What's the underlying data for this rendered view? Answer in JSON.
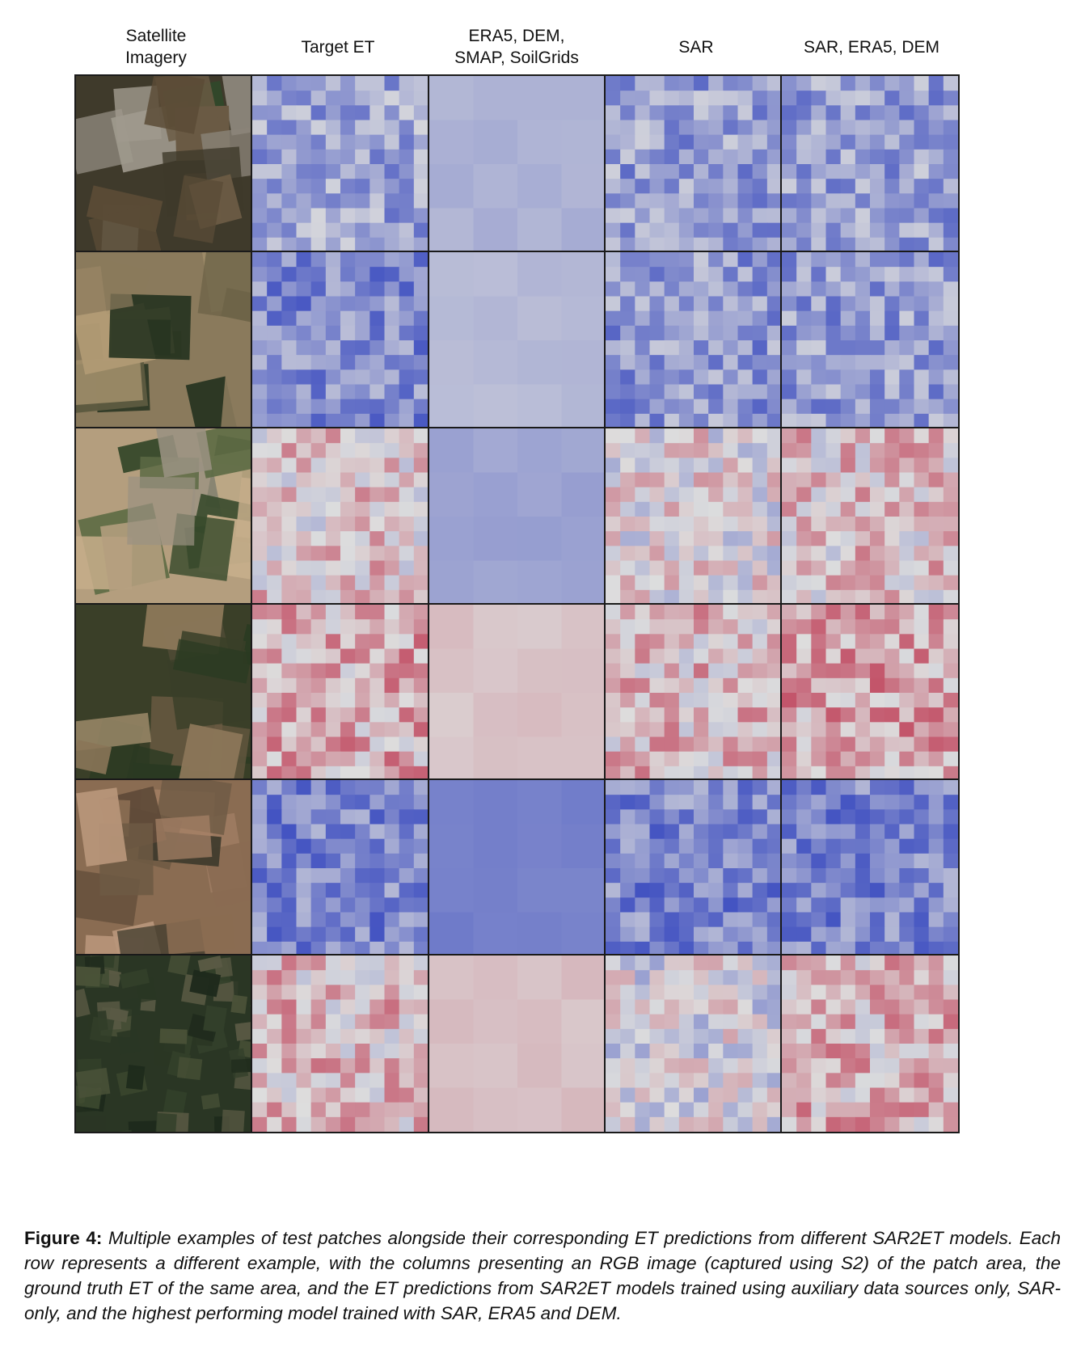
{
  "column_headers": [
    "Satellite\nImagery",
    "Target ET",
    "ERA5, DEM,\nSMAP, SoilGrids",
    "SAR",
    "SAR, ERA5, DEM"
  ],
  "caption": {
    "label": "Figure 4:",
    "text": "Multiple examples of test patches alongside their corresponding ET predictions from different SAR2ET models. Each row represents a different example, with the columns presenting an RGB image (captured using S2) of the patch area, the ground truth ET of the same area, and the ET predictions from SAR2ET models trained using auxiliary data sources only, SAR-only, and the highest performing model trained with SAR, ERA5 and DEM."
  },
  "colormap": {
    "low": "#3b4cc0",
    "mid": "#dddddd",
    "high": "#b40426"
  },
  "rows": [
    {
      "satellite_palette": [
        "#3f3a2b",
        "#6a5a44",
        "#8a8478",
        "#2f4a2a",
        "#a09a8e",
        "#5a4b36"
      ],
      "heatmap_levels": {
        "target": 0.3,
        "aux": 0.35,
        "sar": 0.28,
        "sar_era5_dem": 0.28
      }
    },
    {
      "satellite_palette": [
        "#8a7a5c",
        "#a3906c",
        "#6e6448",
        "#1f2e1c",
        "#b09a74",
        "#5c5a40"
      ],
      "heatmap_levels": {
        "target": 0.22,
        "aux": 0.38,
        "sar": 0.26,
        "sar_era5_dem": 0.27
      }
    },
    {
      "satellite_palette": [
        "#b49e7e",
        "#2e3e26",
        "#9a9282",
        "#5c6a44",
        "#c6ae8a",
        "#384a2c"
      ],
      "heatmap_levels": {
        "target": 0.55,
        "aux": 0.3,
        "sar": 0.5,
        "sar_era5_dem": 0.56
      }
    },
    {
      "satellite_palette": [
        "#3a3f28",
        "#6a5a42",
        "#2a3a22",
        "#8a7658",
        "#4e4a34",
        "#a08c6c"
      ],
      "heatmap_levels": {
        "target": 0.62,
        "aux": 0.56,
        "sar": 0.58,
        "sar_era5_dem": 0.64
      }
    },
    {
      "satellite_palette": [
        "#8a6c52",
        "#5e4a38",
        "#a48066",
        "#3e3a2c",
        "#b8967a",
        "#6e5a44"
      ],
      "heatmap_levels": {
        "target": 0.2,
        "aux": 0.18,
        "sar": 0.2,
        "sar_era5_dem": 0.2
      }
    },
    {
      "satellite_palette": [
        "#2a3624",
        "#3e4a30",
        "#1e2a1c",
        "#4a5238",
        "#5a5a44",
        "#33402a"
      ],
      "heatmap_levels": {
        "target": 0.58,
        "aux": 0.57,
        "sar": 0.46,
        "sar_era5_dem": 0.6
      }
    }
  ]
}
